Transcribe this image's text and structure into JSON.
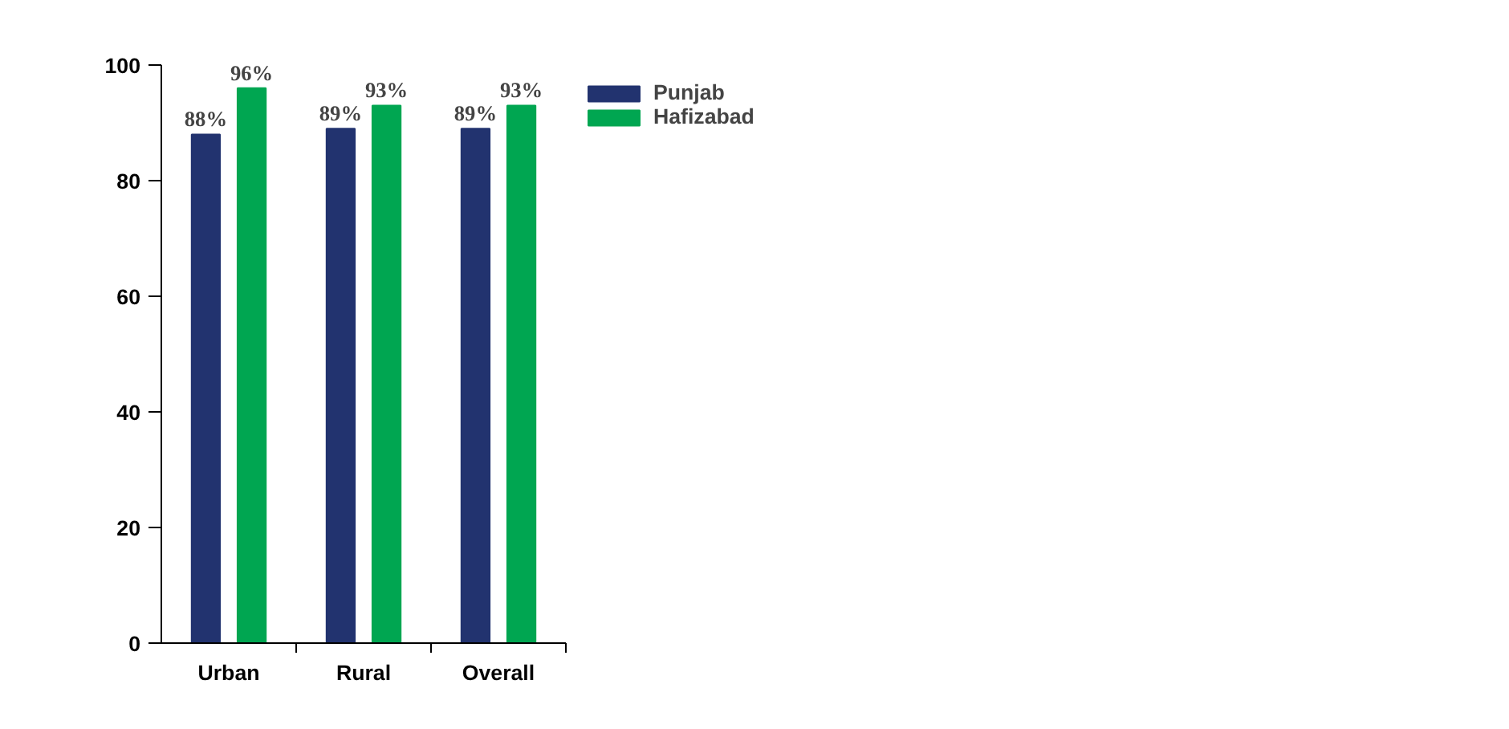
{
  "chart_data": {
    "type": "bar",
    "categories": [
      "Urban",
      "Rural",
      "Overall"
    ],
    "series": [
      {
        "name": "Punjab",
        "color": "#22336f",
        "values": [
          88,
          89,
          89
        ],
        "value_labels": [
          "88%",
          "89%",
          "89%"
        ]
      },
      {
        "name": "Hafizabad",
        "color": "#00a651",
        "values": [
          96,
          93,
          93
        ],
        "value_labels": [
          "96%",
          "93%",
          "93%"
        ]
      }
    ],
    "ylim": [
      0,
      100
    ],
    "yticks": [
      0,
      20,
      40,
      60,
      80,
      100
    ],
    "grid": false,
    "legend": "top right"
  }
}
